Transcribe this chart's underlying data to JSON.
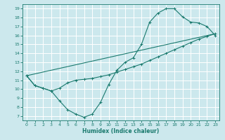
{
  "xlabel": "Humidex (Indice chaleur)",
  "ylabel": "",
  "bg_color": "#cce8ed",
  "grid_color": "#ffffff",
  "line_color": "#1a7a6e",
  "xlim": [
    -0.5,
    23.5
  ],
  "ylim": [
    6.5,
    19.5
  ],
  "xticks": [
    0,
    1,
    2,
    3,
    4,
    5,
    6,
    7,
    8,
    9,
    10,
    11,
    12,
    13,
    14,
    15,
    16,
    17,
    18,
    19,
    20,
    21,
    22,
    23
  ],
  "yticks": [
    7,
    8,
    9,
    10,
    11,
    12,
    13,
    14,
    15,
    16,
    17,
    18,
    19
  ],
  "line1_x": [
    0,
    1,
    2,
    3,
    4,
    5,
    6,
    7,
    8,
    9,
    10,
    11,
    12,
    13,
    14,
    15,
    16,
    17,
    18,
    19,
    20,
    21,
    22,
    23
  ],
  "line1_y": [
    11.5,
    10.4,
    10.1,
    9.8,
    10.1,
    10.7,
    11.0,
    11.1,
    11.2,
    11.4,
    11.6,
    11.9,
    12.2,
    12.5,
    12.8,
    13.2,
    13.6,
    14.0,
    14.4,
    14.8,
    15.2,
    15.6,
    15.9,
    16.2
  ],
  "line2_x": [
    0,
    1,
    2,
    3,
    4,
    5,
    6,
    7,
    8,
    9,
    10,
    11,
    12,
    13,
    14,
    15,
    16,
    17,
    18,
    19,
    20,
    21,
    22,
    23
  ],
  "line2_y": [
    11.5,
    10.4,
    10.1,
    9.8,
    8.7,
    7.7,
    7.2,
    6.85,
    7.2,
    8.5,
    10.5,
    12.1,
    13.0,
    13.5,
    15.0,
    17.5,
    18.5,
    19.0,
    19.0,
    18.1,
    17.5,
    17.4,
    17.0,
    16.0
  ],
  "line3_x": [
    0,
    23
  ],
  "line3_y": [
    11.5,
    16.2
  ],
  "xlabel_fontsize": 5.5,
  "tick_fontsize": 4.5
}
